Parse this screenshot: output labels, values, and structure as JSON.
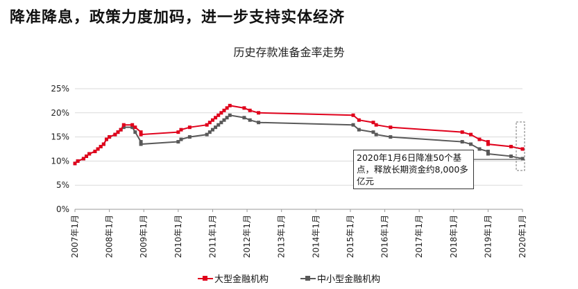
{
  "headline": "降准降息，政策力度加码，进一步支持实体经济",
  "chart_data": {
    "type": "line",
    "title": "历史存款准备金率走势",
    "y_ticks": [
      "0%",
      "5%",
      "10%",
      "15%",
      "20%",
      "25%"
    ],
    "ylim": [
      0,
      25
    ],
    "x_ticks": [
      "2007年1月",
      "2008年1月",
      "2009年1月",
      "2010年1月",
      "2011年1月",
      "2012年1月",
      "2013年1月",
      "2014年1月",
      "2015年1月",
      "2016年1月",
      "2017年1月",
      "2018年1月",
      "2019年1月",
      "2020年1月"
    ],
    "xlim": [
      "2007-01",
      "2020-01"
    ],
    "grid": "horizontal",
    "legend_position": "bottom",
    "series": [
      {
        "name": "大型金融机构",
        "color": "#e0001b",
        "points": [
          [
            "2007-01",
            9.5
          ],
          [
            "2007-02",
            10
          ],
          [
            "2007-04",
            10.5
          ],
          [
            "2007-05",
            11
          ],
          [
            "2007-06",
            11.5
          ],
          [
            "2007-08",
            12
          ],
          [
            "2007-09",
            12.5
          ],
          [
            "2007-10",
            13
          ],
          [
            "2007-11",
            13.5
          ],
          [
            "2007-12",
            14.5
          ],
          [
            "2008-01",
            15
          ],
          [
            "2008-03",
            15.5
          ],
          [
            "2008-04",
            16
          ],
          [
            "2008-05",
            16.5
          ],
          [
            "2008-06",
            17.5
          ],
          [
            "2008-09",
            17.5
          ],
          [
            "2008-10",
            17
          ],
          [
            "2008-12",
            16
          ],
          [
            "2008-12",
            15.5
          ],
          [
            "2010-01",
            16
          ],
          [
            "2010-02",
            16.5
          ],
          [
            "2010-05",
            17
          ],
          [
            "2010-11",
            17.5
          ],
          [
            "2010-12",
            18
          ],
          [
            "2011-01",
            18.5
          ],
          [
            "2011-02",
            19
          ],
          [
            "2011-03",
            19.5
          ],
          [
            "2011-04",
            20
          ],
          [
            "2011-05",
            20.5
          ],
          [
            "2011-06",
            21
          ],
          [
            "2011-07",
            21.5
          ],
          [
            "2011-12",
            21
          ],
          [
            "2012-02",
            20.5
          ],
          [
            "2012-05",
            20
          ],
          [
            "2015-02",
            19.5
          ],
          [
            "2015-04",
            18.5
          ],
          [
            "2015-09",
            18
          ],
          [
            "2015-10",
            17.5
          ],
          [
            "2016-03",
            17
          ],
          [
            "2018-04",
            16
          ],
          [
            "2018-07",
            15.5
          ],
          [
            "2018-10",
            14.5
          ],
          [
            "2019-01",
            14
          ],
          [
            "2019-01",
            13.5
          ],
          [
            "2019-09",
            13
          ],
          [
            "2020-01",
            12.5
          ]
        ]
      },
      {
        "name": "中小型金融机构",
        "color": "#595959",
        "points": [
          [
            "2007-01",
            9.5
          ],
          [
            "2007-02",
            10
          ],
          [
            "2007-04",
            10.5
          ],
          [
            "2007-05",
            11
          ],
          [
            "2007-06",
            11.5
          ],
          [
            "2007-08",
            12
          ],
          [
            "2007-09",
            12.5
          ],
          [
            "2007-10",
            13
          ],
          [
            "2007-11",
            13.5
          ],
          [
            "2007-12",
            14.5
          ],
          [
            "2008-01",
            15
          ],
          [
            "2008-03",
            15.5
          ],
          [
            "2008-04",
            16
          ],
          [
            "2008-05",
            16.5
          ],
          [
            "2008-06",
            17
          ],
          [
            "2008-09",
            17
          ],
          [
            "2008-10",
            16
          ],
          [
            "2008-12",
            14
          ],
          [
            "2008-12",
            13.5
          ],
          [
            "2010-01",
            14
          ],
          [
            "2010-02",
            14.5
          ],
          [
            "2010-05",
            15
          ],
          [
            "2010-11",
            15.5
          ],
          [
            "2010-12",
            16
          ],
          [
            "2011-01",
            16.5
          ],
          [
            "2011-02",
            17
          ],
          [
            "2011-03",
            17.5
          ],
          [
            "2011-04",
            18
          ],
          [
            "2011-05",
            18.5
          ],
          [
            "2011-06",
            19
          ],
          [
            "2011-07",
            19.5
          ],
          [
            "2011-12",
            19
          ],
          [
            "2012-02",
            18.5
          ],
          [
            "2012-05",
            18
          ],
          [
            "2015-02",
            17.5
          ],
          [
            "2015-04",
            16.5
          ],
          [
            "2015-09",
            16
          ],
          [
            "2015-10",
            15.5
          ],
          [
            "2016-03",
            15
          ],
          [
            "2018-04",
            14
          ],
          [
            "2018-07",
            13.5
          ],
          [
            "2018-10",
            12.5
          ],
          [
            "2019-01",
            12
          ],
          [
            "2019-01",
            11.5
          ],
          [
            "2019-09",
            11
          ],
          [
            "2020-01",
            10.5
          ]
        ]
      }
    ],
    "annotation": "2020年1月6日降准50个基点，释放长期资金约8,000多亿元"
  }
}
